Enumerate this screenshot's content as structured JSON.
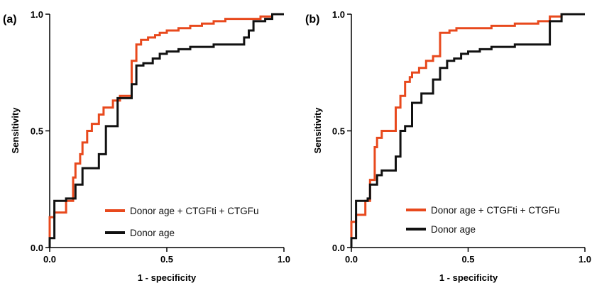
{
  "chart_data": [
    {
      "type": "line",
      "panel_label": "(a)",
      "xlabel": "1 - specificity",
      "ylabel": "Sensitivity",
      "xlim": [
        0,
        1
      ],
      "ylim": [
        0,
        1
      ],
      "x_ticks": [
        "0.0",
        "0.5",
        "1.0"
      ],
      "y_ticks": [
        "0.0",
        "0.5",
        "1.0"
      ],
      "legend_position": "bottom-right",
      "series": [
        {
          "name": "Donor age + CTGFti + CTGFu",
          "color": "#e8491d",
          "x": [
            0,
            0,
            0.02,
            0.02,
            0.07,
            0.07,
            0.1,
            0.1,
            0.11,
            0.11,
            0.13,
            0.13,
            0.14,
            0.14,
            0.16,
            0.16,
            0.18,
            0.18,
            0.21,
            0.21,
            0.23,
            0.23,
            0.27,
            0.27,
            0.3,
            0.3,
            0.35,
            0.35,
            0.37,
            0.37,
            0.39,
            0.39,
            0.42,
            0.42,
            0.45,
            0.45,
            0.47,
            0.47,
            0.5,
            0.5,
            0.55,
            0.55,
            0.6,
            0.6,
            0.65,
            0.65,
            0.7,
            0.7,
            0.75,
            0.75,
            0.8,
            0.8,
            0.85,
            0.85,
            0.9,
            0.9,
            0.95,
            0.95,
            1.0
          ],
          "y": [
            0,
            0.13,
            0.13,
            0.15,
            0.15,
            0.2,
            0.2,
            0.3,
            0.3,
            0.36,
            0.36,
            0.4,
            0.4,
            0.45,
            0.45,
            0.5,
            0.5,
            0.53,
            0.53,
            0.57,
            0.57,
            0.6,
            0.6,
            0.63,
            0.63,
            0.65,
            0.65,
            0.8,
            0.8,
            0.87,
            0.87,
            0.89,
            0.89,
            0.9,
            0.9,
            0.91,
            0.91,
            0.92,
            0.92,
            0.93,
            0.93,
            0.94,
            0.94,
            0.95,
            0.95,
            0.96,
            0.96,
            0.97,
            0.97,
            0.98,
            0.98,
            0.98,
            0.98,
            0.98,
            0.98,
            0.99,
            0.99,
            1.0,
            1.0
          ]
        },
        {
          "name": "Donor age",
          "color": "#111111",
          "x": [
            0,
            0,
            0.02,
            0.02,
            0.07,
            0.07,
            0.11,
            0.11,
            0.14,
            0.14,
            0.16,
            0.16,
            0.21,
            0.21,
            0.24,
            0.24,
            0.29,
            0.29,
            0.35,
            0.35,
            0.37,
            0.37,
            0.4,
            0.4,
            0.44,
            0.44,
            0.47,
            0.47,
            0.5,
            0.5,
            0.55,
            0.55,
            0.6,
            0.6,
            0.7,
            0.7,
            0.8,
            0.8,
            0.83,
            0.83,
            0.85,
            0.85,
            0.87,
            0.87,
            0.92,
            0.92,
            0.95,
            0.95,
            1.0
          ],
          "y": [
            0,
            0.04,
            0.04,
            0.2,
            0.2,
            0.21,
            0.21,
            0.27,
            0.27,
            0.34,
            0.34,
            0.34,
            0.34,
            0.4,
            0.4,
            0.52,
            0.52,
            0.64,
            0.64,
            0.7,
            0.7,
            0.78,
            0.78,
            0.79,
            0.79,
            0.81,
            0.81,
            0.83,
            0.83,
            0.84,
            0.84,
            0.85,
            0.85,
            0.86,
            0.86,
            0.87,
            0.87,
            0.87,
            0.87,
            0.9,
            0.9,
            0.93,
            0.93,
            0.97,
            0.97,
            0.98,
            0.98,
            1.0,
            1.0
          ]
        }
      ]
    },
    {
      "type": "line",
      "panel_label": "(b)",
      "xlabel": "1 - specificity",
      "ylabel": "Sensitivity",
      "xlim": [
        0,
        1
      ],
      "ylim": [
        0,
        1
      ],
      "x_ticks": [
        "0.0",
        "0.5",
        "1.0"
      ],
      "y_ticks": [
        "0.0",
        "0.5",
        "1.0"
      ],
      "legend_position": "bottom-right",
      "series": [
        {
          "name": "Donor age + CTGFti + CTGFu",
          "color": "#e8491d",
          "x": [
            0,
            0,
            0.02,
            0.02,
            0.06,
            0.06,
            0.08,
            0.08,
            0.1,
            0.1,
            0.11,
            0.11,
            0.13,
            0.13,
            0.19,
            0.19,
            0.21,
            0.21,
            0.23,
            0.23,
            0.25,
            0.25,
            0.26,
            0.26,
            0.29,
            0.29,
            0.32,
            0.32,
            0.35,
            0.35,
            0.38,
            0.38,
            0.42,
            0.42,
            0.45,
            0.45,
            0.5,
            0.5,
            0.55,
            0.55,
            0.6,
            0.6,
            0.7,
            0.7,
            0.8,
            0.8,
            0.85,
            0.85,
            0.9,
            0.9,
            1.0
          ],
          "y": [
            0,
            0.11,
            0.11,
            0.14,
            0.14,
            0.2,
            0.2,
            0.29,
            0.29,
            0.43,
            0.43,
            0.47,
            0.47,
            0.5,
            0.5,
            0.6,
            0.6,
            0.65,
            0.65,
            0.71,
            0.71,
            0.73,
            0.73,
            0.75,
            0.75,
            0.77,
            0.77,
            0.8,
            0.8,
            0.82,
            0.82,
            0.92,
            0.92,
            0.93,
            0.93,
            0.94,
            0.94,
            0.94,
            0.94,
            0.94,
            0.94,
            0.95,
            0.95,
            0.96,
            0.96,
            0.97,
            0.97,
            0.99,
            0.99,
            1.0,
            1.0
          ]
        },
        {
          "name": "Donor age",
          "color": "#111111",
          "x": [
            0,
            0,
            0.02,
            0.02,
            0.07,
            0.07,
            0.08,
            0.08,
            0.11,
            0.11,
            0.13,
            0.13,
            0.19,
            0.19,
            0.21,
            0.21,
            0.23,
            0.23,
            0.26,
            0.26,
            0.3,
            0.3,
            0.35,
            0.35,
            0.38,
            0.38,
            0.41,
            0.41,
            0.44,
            0.44,
            0.47,
            0.47,
            0.5,
            0.5,
            0.55,
            0.55,
            0.6,
            0.6,
            0.65,
            0.65,
            0.7,
            0.7,
            0.8,
            0.8,
            0.85,
            0.85,
            0.9,
            0.9,
            1.0
          ],
          "y": [
            0,
            0.04,
            0.04,
            0.2,
            0.2,
            0.21,
            0.21,
            0.27,
            0.27,
            0.31,
            0.31,
            0.33,
            0.33,
            0.39,
            0.39,
            0.5,
            0.5,
            0.52,
            0.52,
            0.62,
            0.62,
            0.66,
            0.66,
            0.72,
            0.72,
            0.77,
            0.77,
            0.8,
            0.8,
            0.81,
            0.81,
            0.83,
            0.83,
            0.84,
            0.84,
            0.85,
            0.85,
            0.86,
            0.86,
            0.86,
            0.86,
            0.87,
            0.87,
            0.87,
            0.87,
            0.97,
            0.97,
            1.0,
            1.0
          ]
        }
      ]
    }
  ]
}
